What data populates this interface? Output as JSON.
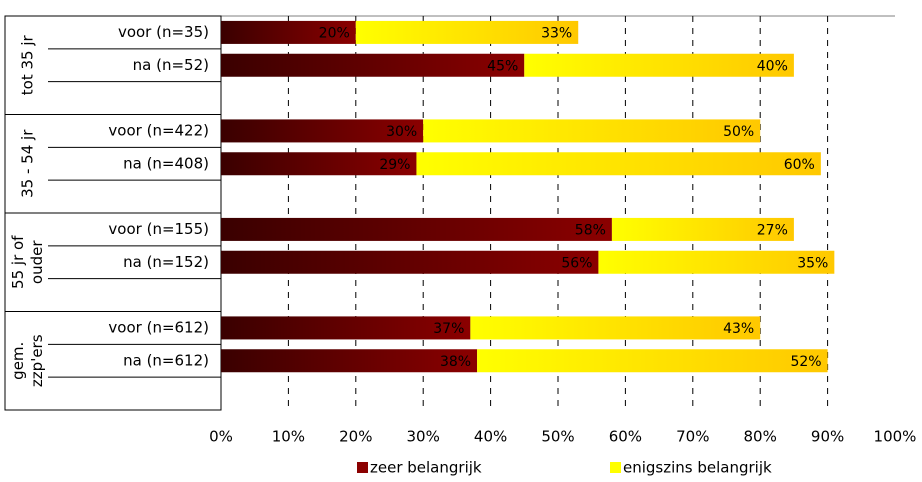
{
  "chart_data": {
    "type": "stacked-barh",
    "groups": [
      [
        "tot 35 jr"
      ],
      [
        "35 - 54 jr"
      ],
      [
        "55 jr of",
        "ouder"
      ],
      [
        "gem.",
        "zzp'ers"
      ]
    ],
    "categories": [
      "voor (n=35)",
      "na (n=52)",
      "voor (n=422)",
      "na (n=408)",
      "voor (n=155)",
      "na (n=152)",
      "voor (n=612)",
      "na (n=612)"
    ],
    "series": [
      {
        "name": "zeer belangrijk",
        "color": "#8b0000",
        "color_start": "#3a0000",
        "label_color": "#ffffff",
        "values": [
          20,
          45,
          30,
          29,
          58,
          56,
          37,
          38
        ],
        "value_labels": [
          "20%",
          "45%",
          "30%",
          "29%",
          "58%",
          "56%",
          "37%",
          "38%"
        ]
      },
      {
        "name": "enigszins belangrijk",
        "color": "#ffff00",
        "color_end": "#ffc800",
        "label_color": "#000000",
        "values": [
          33,
          40,
          50,
          60,
          27,
          35,
          43,
          52
        ],
        "value_labels": [
          "33%",
          "40%",
          "50%",
          "60%",
          "27%",
          "35%",
          "43%",
          "52%"
        ]
      }
    ],
    "xlim": [
      0,
      100
    ],
    "xticks": [
      {
        "value": 0,
        "label": "0%"
      },
      {
        "value": 10,
        "label": "10%"
      },
      {
        "value": 20,
        "label": "20%"
      },
      {
        "value": 30,
        "label": "30%"
      },
      {
        "value": 40,
        "label": "40%"
      },
      {
        "value": 50,
        "label": "50%"
      },
      {
        "value": 60,
        "label": "60%"
      },
      {
        "value": 70,
        "label": "70%"
      },
      {
        "value": 80,
        "label": "80%"
      },
      {
        "value": 90,
        "label": "90%"
      },
      {
        "value": 100,
        "label": "100%"
      }
    ],
    "grid": true,
    "legend": "bottom"
  }
}
